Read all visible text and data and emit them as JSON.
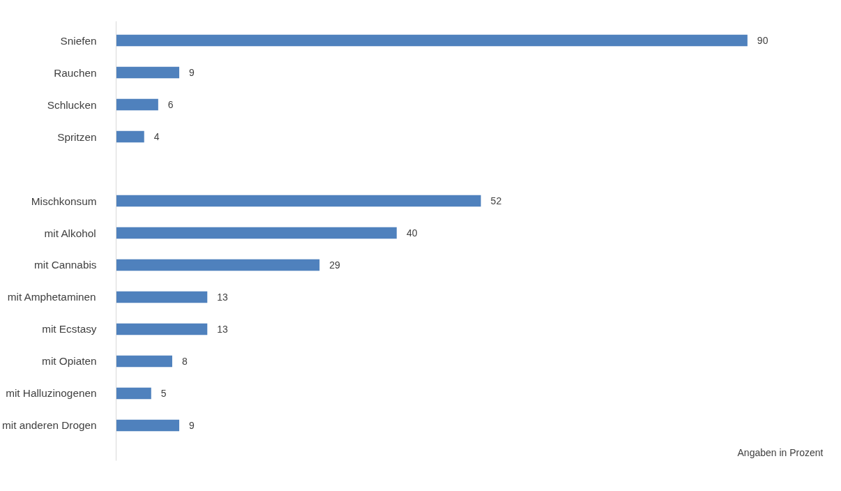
{
  "chart_data": {
    "type": "bar",
    "orientation": "horizontal",
    "categories": [
      "Sniefen",
      "Rauchen",
      "Schlucken",
      "Spritzen",
      null,
      "Mischkonsum",
      "mit Alkohol",
      "mit Cannabis",
      "mit Amphetaminen",
      "mit Ecstasy",
      "mit Opiaten",
      "mit Halluzinogenen",
      "mit anderen Drogen"
    ],
    "values": [
      90,
      9,
      6,
      4,
      null,
      52,
      40,
      29,
      13,
      13,
      8,
      5,
      9
    ],
    "color": "#4f81bd",
    "data_labels": true,
    "tick_labels": "y",
    "annotations": [
      "Angaben in Prozent"
    ]
  }
}
